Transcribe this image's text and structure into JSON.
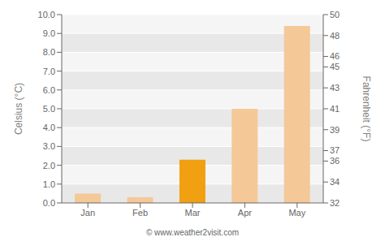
{
  "chart_data": {
    "type": "bar",
    "categories": [
      "Jan",
      "Feb",
      "Mar",
      "Apr",
      "May"
    ],
    "values": [
      0.5,
      0.3,
      2.3,
      5.0,
      9.4
    ],
    "colors": [
      "#f5c898",
      "#f5c898",
      "#f0a010",
      "#f5c898",
      "#f5c898"
    ],
    "ylabel": "Celsius (°C)",
    "y2label": "Fahrenheit (°F)",
    "ylim": [
      0,
      10.0
    ],
    "yticks": [
      {
        "value": 0.0,
        "label": "0.0"
      },
      {
        "value": 1.0,
        "label": "1.0"
      },
      {
        "value": 2.0,
        "label": "2.0"
      },
      {
        "value": 3.0,
        "label": "3.0"
      },
      {
        "value": 4.0,
        "label": "4.0"
      },
      {
        "value": 5.0,
        "label": "5.0"
      },
      {
        "value": 6.0,
        "label": "6.0"
      },
      {
        "value": 7.0,
        "label": "7.0"
      },
      {
        "value": 8.0,
        "label": "8.0"
      },
      {
        "value": 9.0,
        "label": "9.0"
      },
      {
        "value": 10.0,
        "label": "10.0"
      }
    ],
    "y2lim": [
      32,
      50
    ],
    "y2ticks": [
      32,
      34,
      36,
      37,
      39,
      41,
      43,
      45,
      46,
      48,
      50
    ],
    "grid": true,
    "annotations": [
      "© www.weather2visit.com"
    ]
  }
}
